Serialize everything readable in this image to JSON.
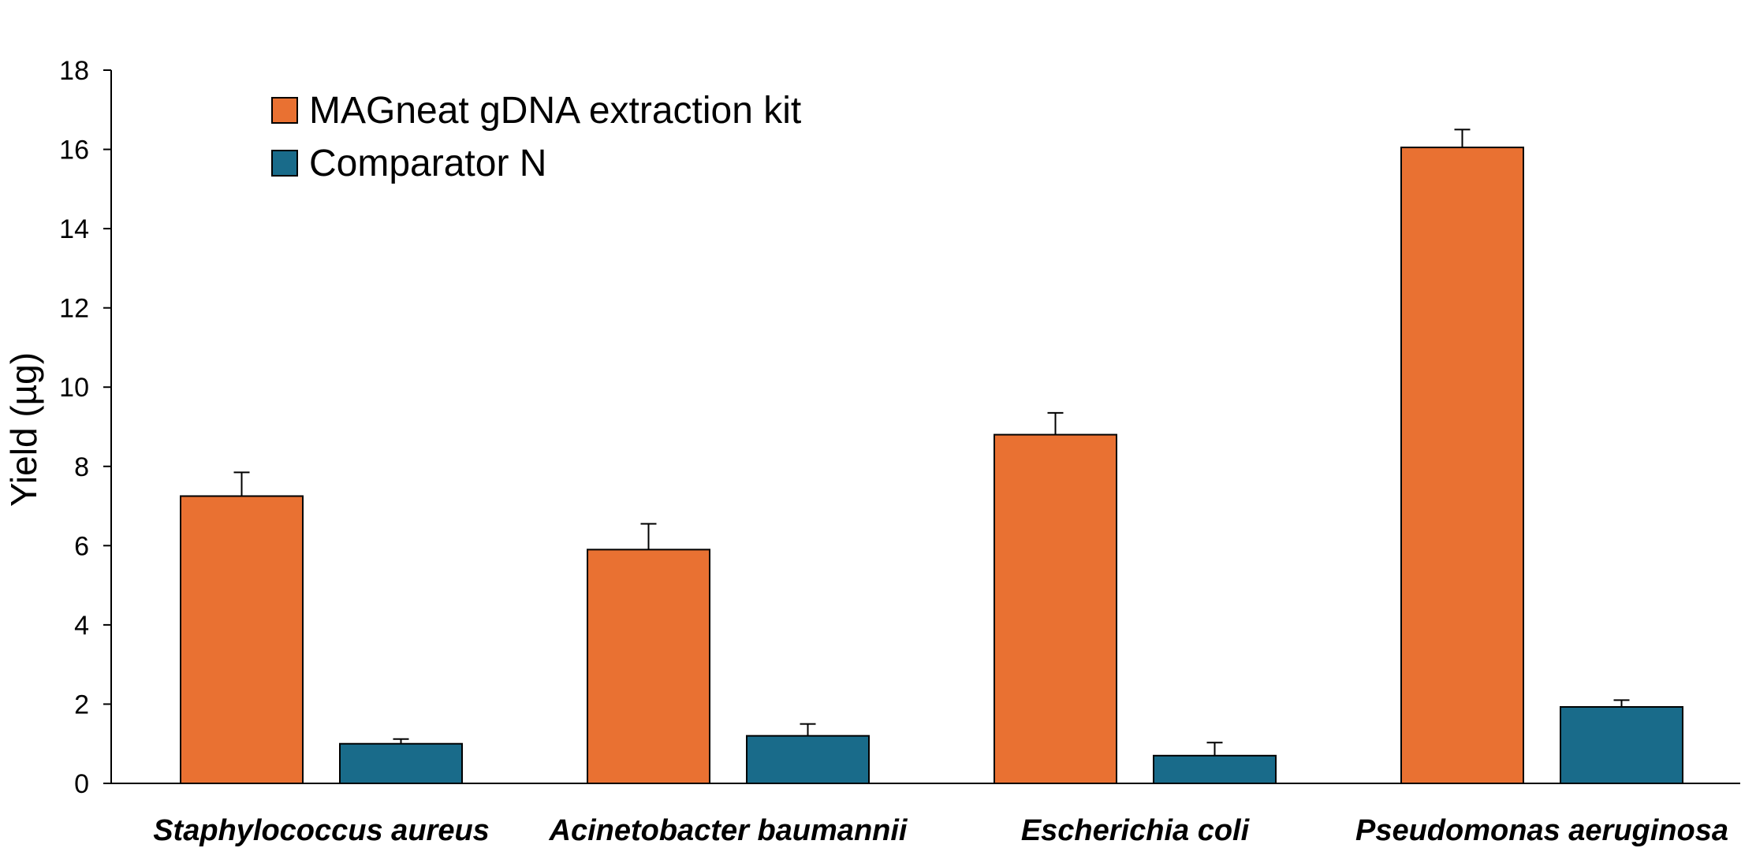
{
  "chart_data": {
    "type": "bar",
    "title": "",
    "xlabel": "",
    "ylabel": "Yield (µg)",
    "ylim": [
      0,
      18
    ],
    "yticks": [
      0,
      2,
      4,
      6,
      8,
      10,
      12,
      14,
      16,
      18
    ],
    "categories": [
      "Staphylococcus aureus",
      "Acinetobacter baumannii",
      "Escherichia coli",
      "Pseudomonas aeruginosa"
    ],
    "series": [
      {
        "name": "MAGneat gDNA extraction kit",
        "color": "#E97132",
        "values": [
          7.25,
          5.9,
          8.8,
          16.05
        ],
        "error": [
          0.6,
          0.65,
          0.55,
          0.45
        ]
      },
      {
        "name": "Comparator N",
        "color": "#196B8A",
        "values": [
          1.0,
          1.2,
          0.7,
          1.93
        ],
        "error": [
          0.12,
          0.3,
          0.33,
          0.17
        ]
      }
    ],
    "legend": "top-left",
    "grid": false
  }
}
